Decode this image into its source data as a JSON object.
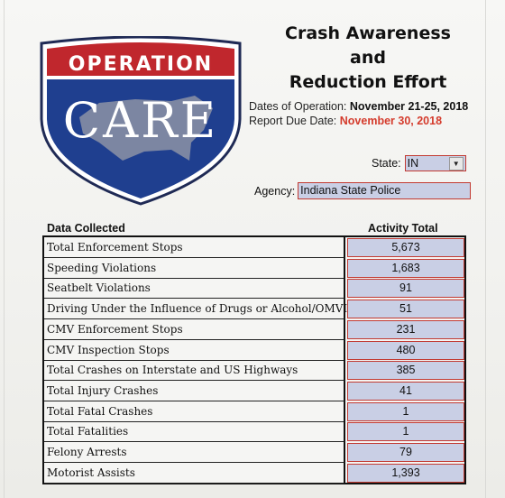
{
  "logo": {
    "top_text": "OPERATION",
    "main_text": "CARE",
    "colors": {
      "red": "#c0272d",
      "blue": "#1f3f8f",
      "white": "#ffffff",
      "gray": "#8d93a6"
    }
  },
  "title": {
    "line1": "Crash Awareness",
    "line2": "and",
    "line3": "Reduction Effort"
  },
  "dates": {
    "operation_label": "Dates of Operation:",
    "operation_value": "November 21-25, 2018",
    "due_label": "Report Due Date:",
    "due_value": "November 30, 2018"
  },
  "state": {
    "label": "State:",
    "value": "IN"
  },
  "agency": {
    "label": "Agency:",
    "value": "Indiana State Police"
  },
  "table": {
    "header_category": "Data Collected",
    "header_value": "Activity Total",
    "rows": [
      {
        "label": "Total Enforcement Stops",
        "value": "5,673"
      },
      {
        "label": "Speeding Violations",
        "value": "1,683"
      },
      {
        "label": "Seatbelt Violations",
        "value": "91"
      },
      {
        "label": "Driving Under the Influence of Drugs or Alcohol/OMVI",
        "value": "51"
      },
      {
        "label": "CMV Enforcement Stops",
        "value": "231"
      },
      {
        "label": "CMV Inspection Stops",
        "value": "480"
      },
      {
        "label": "Total Crashes on Interstate and US Highways",
        "value": "385"
      },
      {
        "label": "Total Injury Crashes",
        "value": "41"
      },
      {
        "label": "Total Fatal Crashes",
        "value": "1"
      },
      {
        "label": "Total Fatalities",
        "value": "1"
      },
      {
        "label": "Felony Arrests",
        "value": "79"
      },
      {
        "label": "Motorist Assists",
        "value": "1,393"
      }
    ]
  },
  "colors": {
    "field_bg": "#c9cfe5",
    "field_border": "#c23a32",
    "due_date": "#d43b2c"
  }
}
